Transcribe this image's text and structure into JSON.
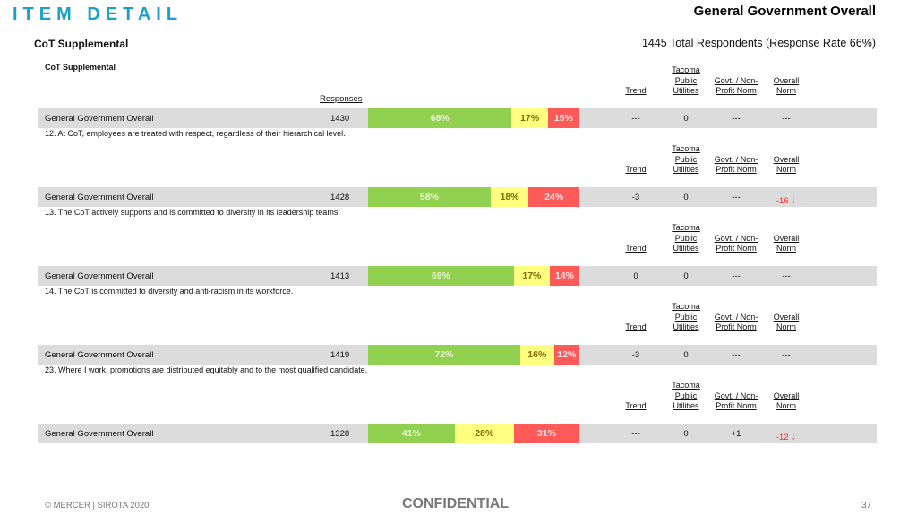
{
  "header": {
    "page_title": "ITEM DETAIL",
    "doc_heading": "General Government Overall",
    "subtitle": "CoT Supplemental",
    "respondents": "1445 Total Respondents (Response Rate  66%)"
  },
  "table": {
    "section_label": "CoT Supplemental",
    "responses_header": "Responses",
    "col_trend": "Trend",
    "col_tpu": [
      "Tacoma",
      "Public",
      "Utilities"
    ],
    "col_govt": [
      "Govt. / Non-",
      "Profit Norm"
    ],
    "col_overall": [
      "Overall",
      "Norm"
    ]
  },
  "items": [
    {
      "question": "",
      "row": {
        "label": "General Government Overall",
        "responses": "1430",
        "fav": 68,
        "neu": 17,
        "unf": 15,
        "fav_label": "68%",
        "neu_label": "17%",
        "unf_label": "15%",
        "trend": "---",
        "tpu": "0",
        "govt": "---",
        "overall": "---",
        "overall_negative": false
      }
    },
    {
      "question": "12. At CoT, employees are treated with respect, regardless of their hierarchical level.",
      "row": {
        "label": "General Government Overall",
        "responses": "1428",
        "fav": 58,
        "neu": 18,
        "unf": 24,
        "fav_label": "58%",
        "neu_label": "18%",
        "unf_label": "24%",
        "trend": "-3",
        "tpu": "0",
        "govt": "---",
        "overall": "-16",
        "overall_negative": true
      }
    },
    {
      "question": "13. The CoT actively supports and is committed to diversity in its leadership teams.",
      "row": {
        "label": "General Government Overall",
        "responses": "1413",
        "fav": 69,
        "neu": 17,
        "unf": 14,
        "fav_label": "69%",
        "neu_label": "17%",
        "unf_label": "14%",
        "trend": "0",
        "tpu": "0",
        "govt": "---",
        "overall": "---",
        "overall_negative": false
      }
    },
    {
      "question": "14. The CoT is committed to diversity and anti-racism in its workforce.",
      "row": {
        "label": "General Government Overall",
        "responses": "1419",
        "fav": 72,
        "neu": 16,
        "unf": 12,
        "fav_label": "72%",
        "neu_label": "16%",
        "unf_label": "12%",
        "trend": "-3",
        "tpu": "0",
        "govt": "---",
        "overall": "---",
        "overall_negative": false
      }
    },
    {
      "question": "23. Where I work, promotions are distributed equitably and to the most qualified candidate.",
      "row": {
        "label": "General Government Overall",
        "responses": "1328",
        "fav": 41,
        "neu": 28,
        "unf": 31,
        "fav_label": "41%",
        "neu_label": "28%",
        "unf_label": "31%",
        "trend": "---",
        "tpu": "0",
        "govt": "+1",
        "overall": "-12",
        "overall_negative": true
      }
    }
  ],
  "footer": {
    "copyright": "© MERCER | SIROTA 2020",
    "confidential": "CONFIDENTIAL",
    "page_number": "37"
  },
  "colors": {
    "title_accent": "#1aa0c9",
    "favorable": "#92d050",
    "neutral": "#ffff80",
    "unfavorable": "#ff5a5a",
    "negative_text": "#e8302a"
  }
}
